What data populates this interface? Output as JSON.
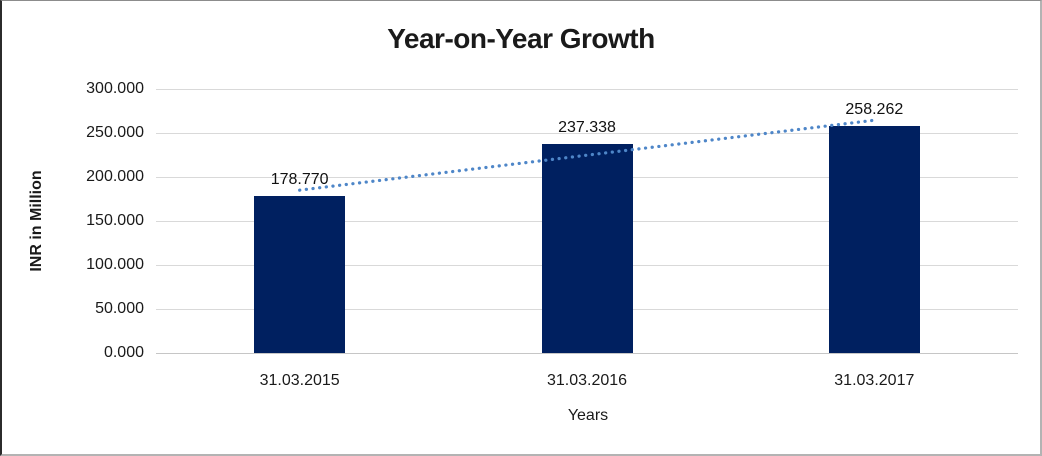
{
  "chart_data": {
    "type": "bar",
    "title": "Year-on-Year Growth",
    "categories": [
      "31.03.2015",
      "31.03.2016",
      "31.03.2017"
    ],
    "values": [
      178.77,
      237.338,
      258.262
    ],
    "data_labels": [
      "178.770",
      "237.338",
      "258.262"
    ],
    "xlabel": "Years",
    "ylabel": "INR in Million",
    "ylim": [
      0,
      300
    ],
    "ytick_step": 50,
    "ytick_labels": [
      "0.000",
      "50.000",
      "100.000",
      "150.000",
      "200.000",
      "250.000",
      "300.000"
    ],
    "grid": true,
    "legend": "none",
    "bar_color": "#002060",
    "gridline_color": "#d9d9d9",
    "axis_line_color": "#c6c6c6",
    "trendline": {
      "type": "linear",
      "style": "dotted",
      "color": "#4e86c8"
    }
  }
}
